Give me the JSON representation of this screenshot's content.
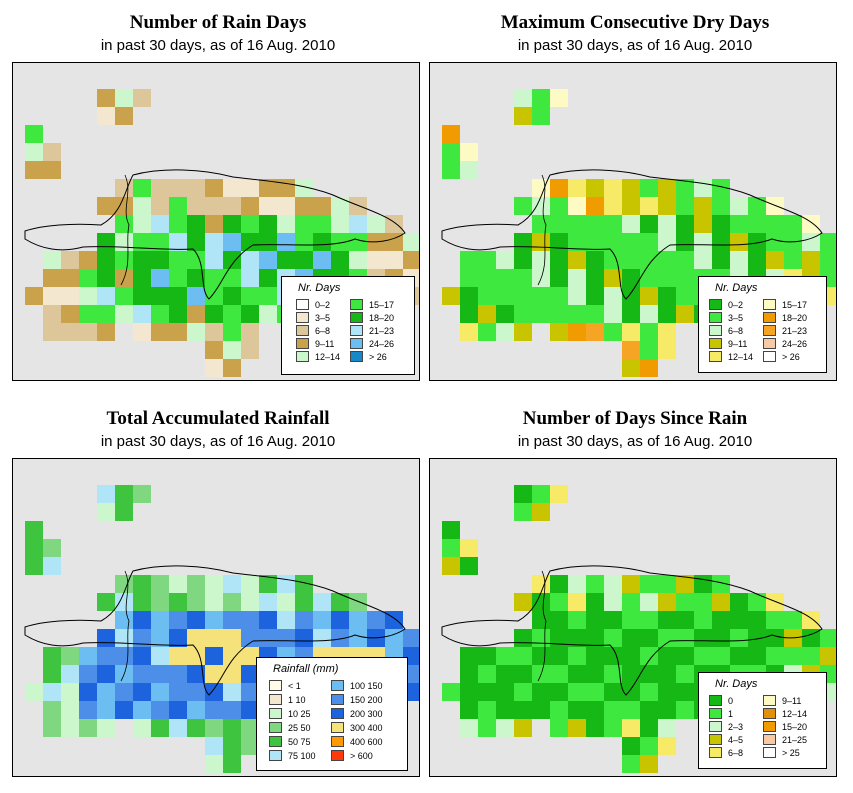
{
  "panels": [
    {
      "title": "Number of Rain Days",
      "subtitle": "in past 30 days, as of  16 Aug. 2010",
      "legend": {
        "title": "Nr. Days",
        "items": [
          {
            "label": "0–2",
            "color": "#ffffff"
          },
          {
            "label": "3–5",
            "color": "#f3e7cf"
          },
          {
            "label": "6–8",
            "color": "#ddc79a"
          },
          {
            "label": "9–11",
            "color": "#c9a24b"
          },
          {
            "label": "12–14",
            "color": "#ccf7cc"
          },
          {
            "label": "15–17",
            "color": "#3ee83e"
          },
          {
            "label": "18–20",
            "color": "#16b816"
          },
          {
            "label": "21–23",
            "color": "#b0e5f7"
          },
          {
            "label": "24–26",
            "color": "#6cbdf2"
          },
          {
            "label": "> 26",
            "color": "#1788c8"
          }
        ]
      }
    },
    {
      "title": "Maximum Consecutive Dry Days",
      "subtitle": "in past 30 days, as of  16 Aug. 2010",
      "legend": {
        "title": "Nr. Days",
        "items": [
          {
            "label": "0–2",
            "color": "#16b816"
          },
          {
            "label": "3–5",
            "color": "#3ee83e"
          },
          {
            "label": "6–8",
            "color": "#ccf7cc"
          },
          {
            "label": "9–11",
            "color": "#c8c400"
          },
          {
            "label": "12–14",
            "color": "#f6ea66"
          },
          {
            "label": "15–17",
            "color": "#fdfac3"
          },
          {
            "label": "18–20",
            "color": "#f09b00"
          },
          {
            "label": "21–23",
            "color": "#f5a423"
          },
          {
            "label": "24–26",
            "color": "#f8c9a5"
          },
          {
            "label": "> 26",
            "color": "#ffffff"
          }
        ]
      }
    },
    {
      "title": "Total Accumulated Rainfall",
      "subtitle": "in past 30 days, as of  16 Aug. 2010",
      "legend": {
        "title": "Rainfall (mm)",
        "items": [
          {
            "label": "< 1",
            "color": "#fffbe8"
          },
          {
            "label": "1   10",
            "color": "#f3e7cf"
          },
          {
            "label": "10   25",
            "color": "#ccf7cc"
          },
          {
            "label": "25   50",
            "color": "#7fd87f"
          },
          {
            "label": "50   75",
            "color": "#3ec43e"
          },
          {
            "label": "75   100",
            "color": "#b0e5f7"
          },
          {
            "label": "100   150",
            "color": "#6cbdf2"
          },
          {
            "label": "150   200",
            "color": "#4d8fe8"
          },
          {
            "label": "200   300",
            "color": "#1d63dd"
          },
          {
            "label": "300   400",
            "color": "#f6e27a"
          },
          {
            "label": "400   600",
            "color": "#ff9a00"
          },
          {
            "label": "> 600",
            "color": "#ff3a0a"
          }
        ]
      }
    },
    {
      "title": "Number of Days Since Rain",
      "subtitle": "in past 30 days, as of  16 Aug. 2010",
      "legend": {
        "title": "Nr. Days",
        "items": [
          {
            "label": "0",
            "color": "#16b816"
          },
          {
            "label": "1",
            "color": "#3ee83e"
          },
          {
            "label": "2–3",
            "color": "#ccf7cc"
          },
          {
            "label": "4–5",
            "color": "#c8c400"
          },
          {
            "label": "6–8",
            "color": "#f6ea66"
          },
          {
            "label": "9–11",
            "color": "#fdfac3"
          },
          {
            "label": "12–14",
            "color": "#e0900a"
          },
          {
            "label": "15–20",
            "color": "#f09b00"
          },
          {
            "label": "21–25",
            "color": "#f8c9a5"
          },
          {
            "label": "> 25",
            "color": "#ffffff"
          }
        ]
      }
    }
  ]
}
